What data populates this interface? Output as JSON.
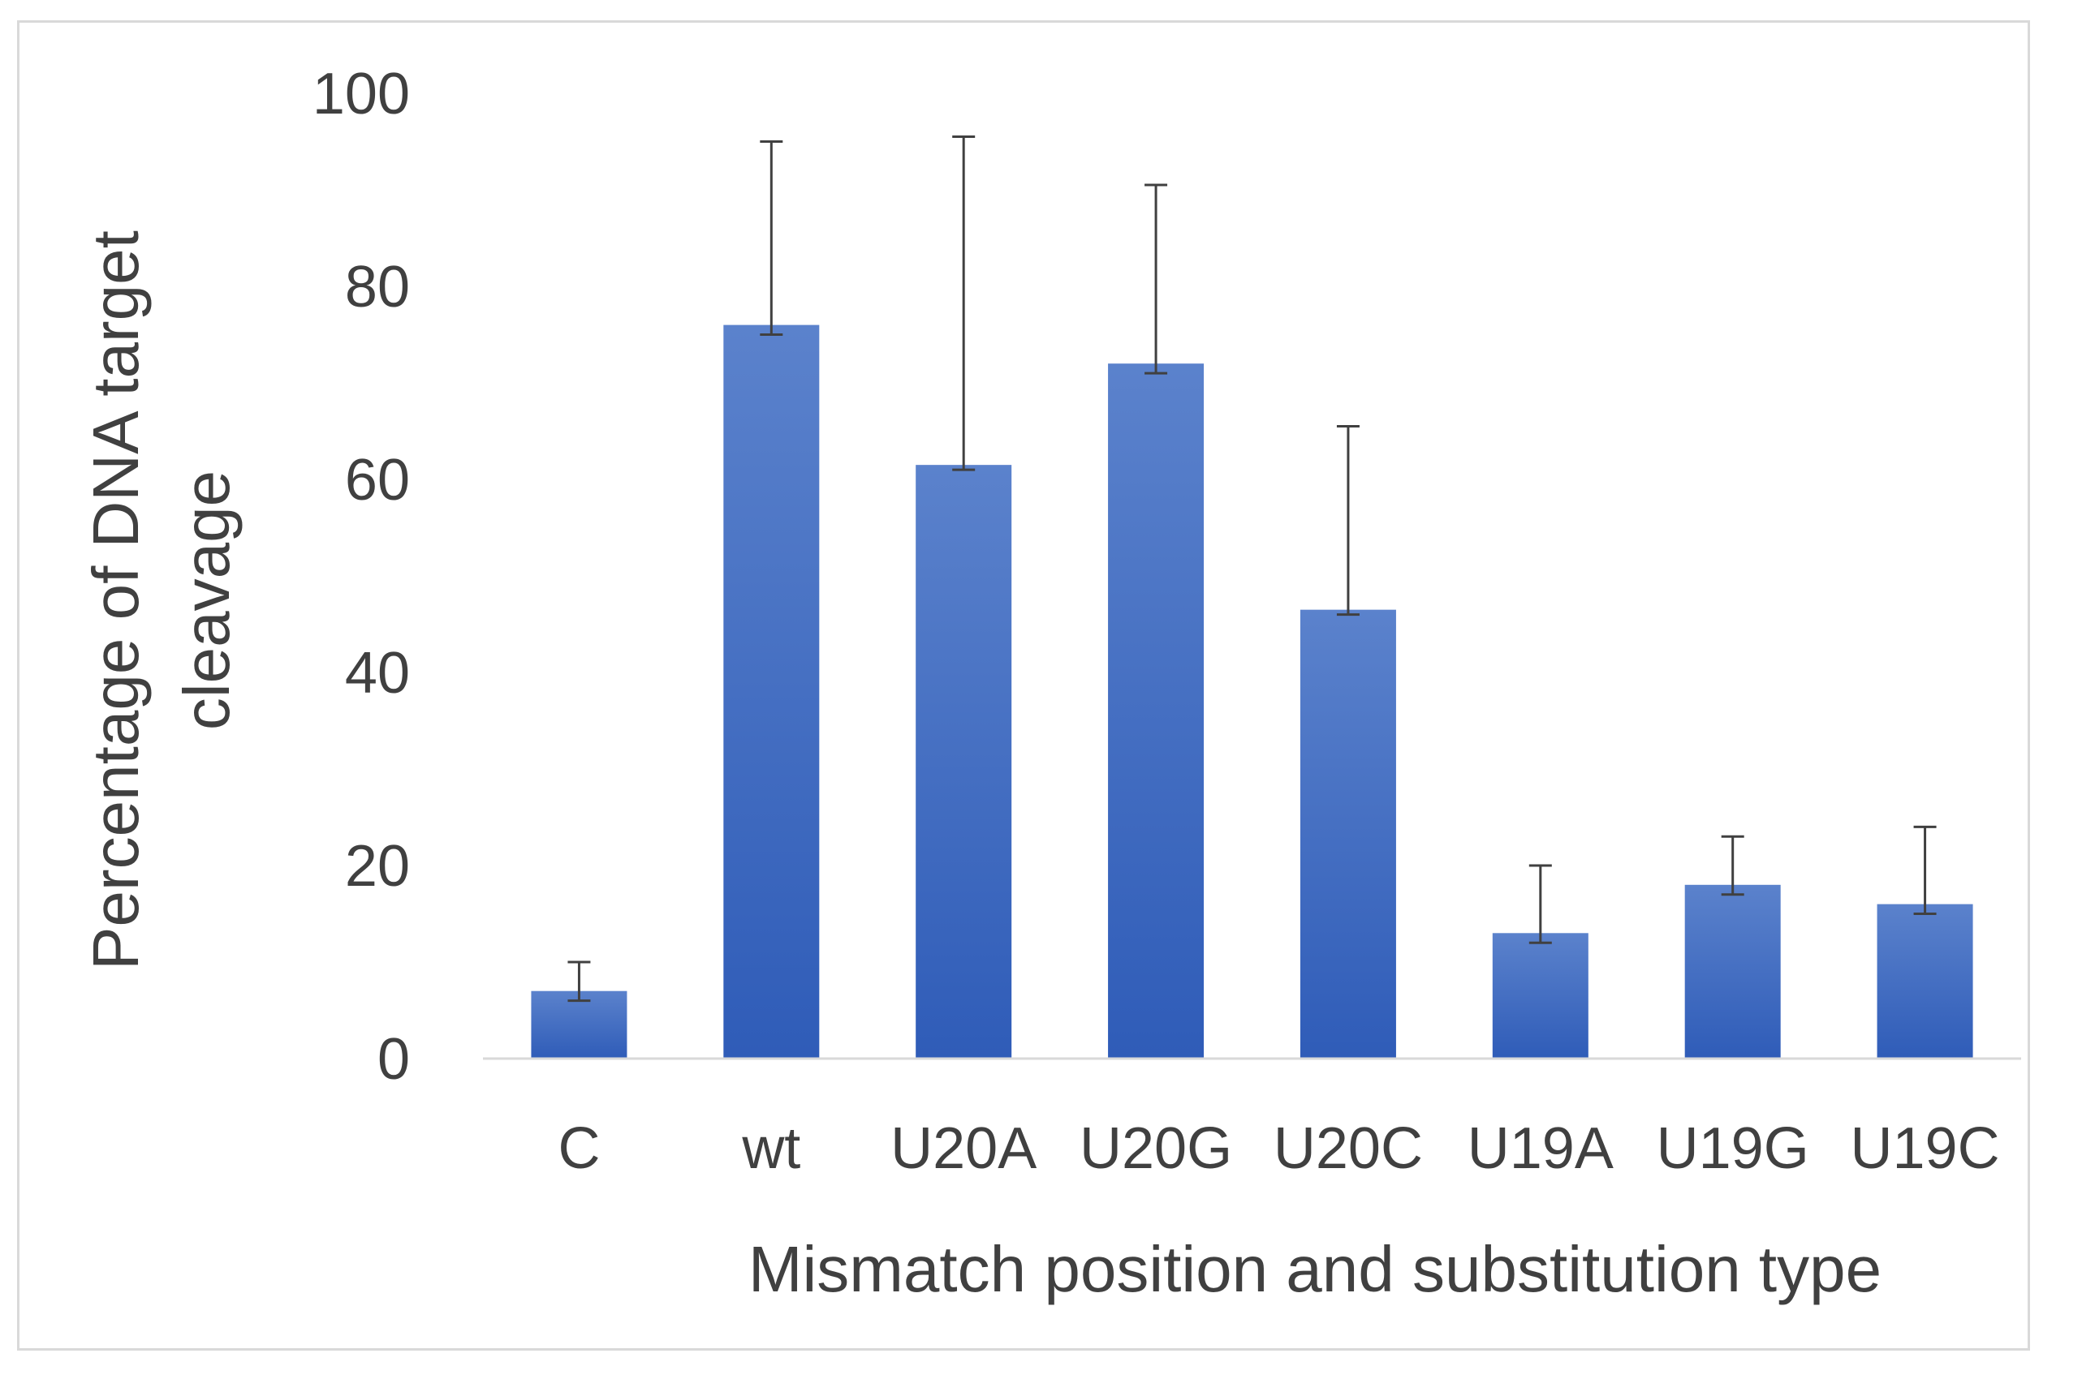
{
  "chart_data": {
    "type": "bar",
    "title": "",
    "xlabel": "Mismatch position and substitution type",
    "ylabel_lines": [
      "Percentage of DNA target",
      "cleavage"
    ],
    "categories": [
      "C",
      "wt",
      "U20A",
      "U20G",
      "U20C",
      "U19A",
      "U19G",
      "U19C"
    ],
    "values": [
      7,
      76,
      61.5,
      72,
      46.5,
      13,
      18,
      16
    ],
    "error_upper": [
      10,
      95,
      95.5,
      90.5,
      65.5,
      20,
      23,
      24
    ],
    "error_lower": [
      6,
      75,
      61,
      71,
      46,
      12,
      17,
      15
    ],
    "yticks": [
      0,
      20,
      40,
      60,
      80,
      100
    ],
    "ylim": [
      0,
      100
    ],
    "grid": false,
    "legend": "none",
    "bar_color_top": "#5b82cc",
    "bar_color_bottom": "#2f5cb8",
    "error_color": "#404040",
    "axis_color": "#d9d9d9",
    "text_color": "#404040"
  }
}
